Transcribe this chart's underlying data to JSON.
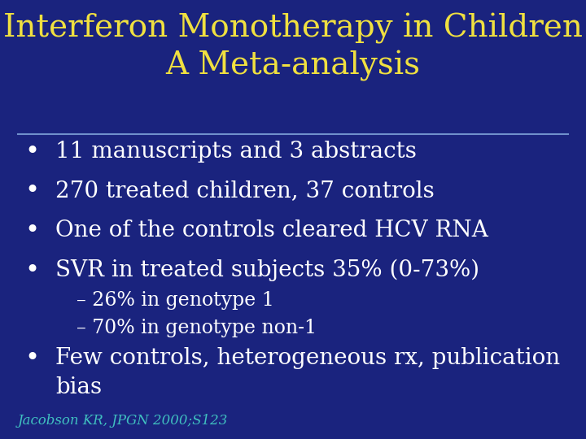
{
  "background_color": "#1a237e",
  "title_line1": "Interferon Monotherapy in Children",
  "title_line2": "A Meta-analysis",
  "title_color": "#f0e040",
  "title_fontsize": 28,
  "divider_color": "#7090cc",
  "bullet_color": "#ffffff",
  "bullet_fontsize": 20,
  "bullet_items": [
    "11 manuscripts and 3 abstracts",
    "270 treated children, 37 controls",
    "One of the controls cleared HCV RNA",
    "SVR in treated subjects 35% (0-73%)"
  ],
  "sub_bullet_items": [
    "– 26% in genotype 1",
    "– 70% in genotype non-1"
  ],
  "sub_bullet_fontsize": 17,
  "last_bullet_line1": "Few controls, heterogeneous rx, publication",
  "last_bullet_line2": "bias",
  "citation": "Jacobson KR, JPGN 2000;S123",
  "citation_color": "#40c0c0",
  "citation_fontsize": 12
}
